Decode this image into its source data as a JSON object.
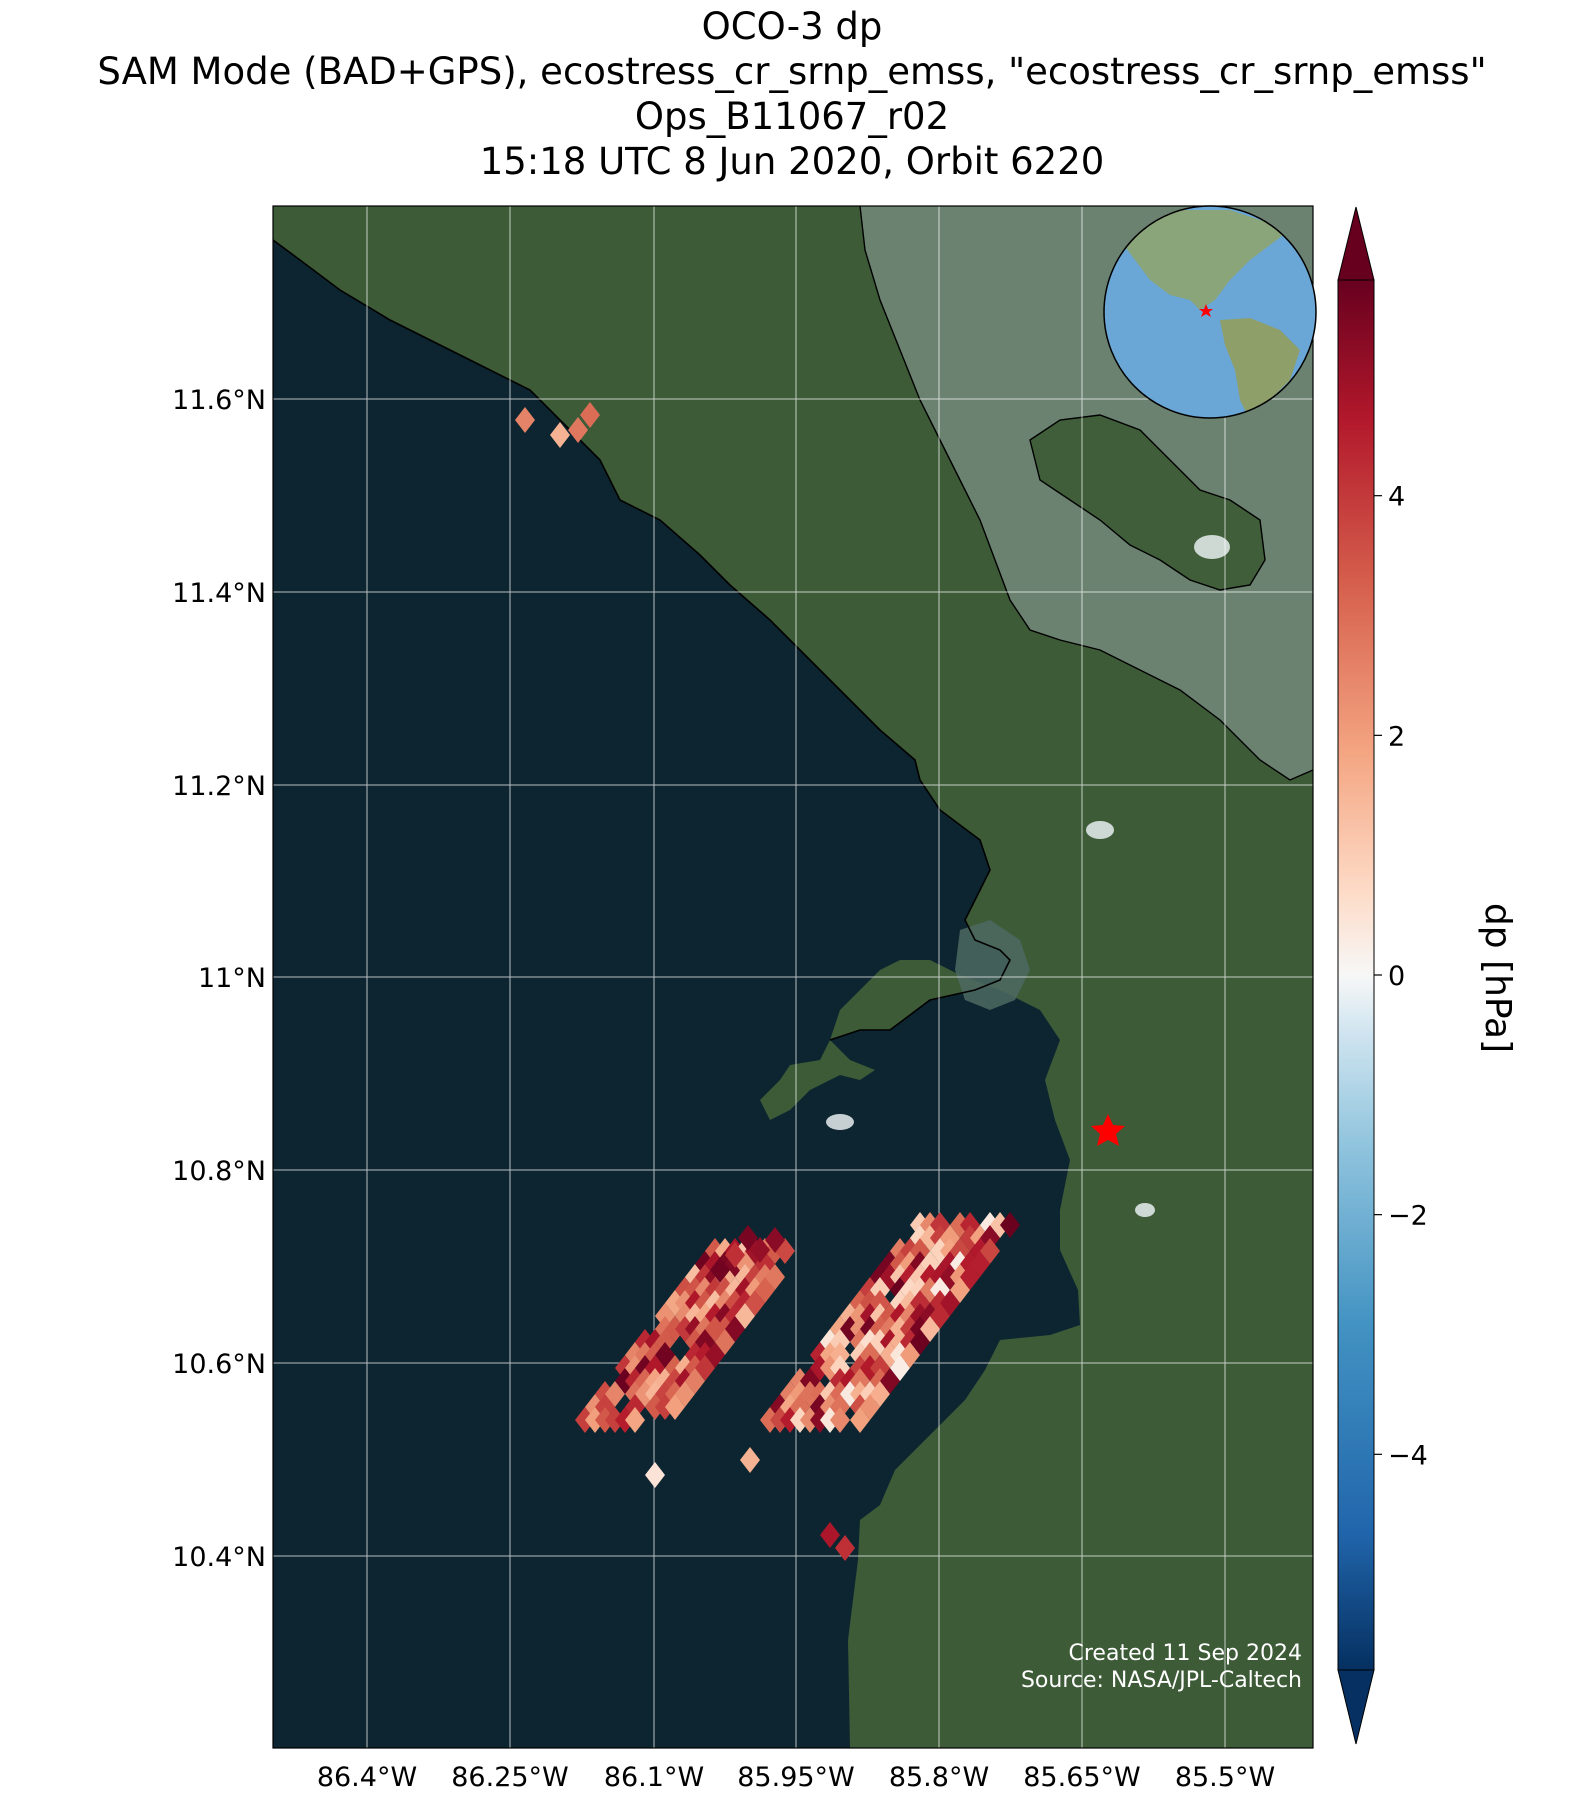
{
  "title": {
    "line1": "OCO-3 dp",
    "line2": "SAM Mode (BAD+GPS), ecostress_cr_srnp_emss, \"ecostress_cr_srnp_emss\"",
    "line3": "Ops_B11067_r02",
    "line4": "15:18 UTC 8 Jun 2020, Orbit 6220"
  },
  "axes": {
    "lon_ticks": [
      "86.4°W",
      "86.25°W",
      "86.1°W",
      "85.95°W",
      "85.8°W",
      "85.65°W",
      "85.5°W"
    ],
    "lat_ticks": [
      "11.6°N",
      "11.4°N",
      "11.2°N",
      "11°N",
      "10.8°N",
      "10.6°N",
      "10.4°N"
    ]
  },
  "colorbar": {
    "label": "dp [hPa]",
    "ticks": [
      "4",
      "2",
      "0",
      "−2",
      "−4"
    ],
    "tick_values": [
      4,
      2,
      0,
      -2,
      -4
    ],
    "range": [
      -5.8,
      5.8
    ],
    "colormap": "RdBu_r"
  },
  "credits": {
    "created": "Created 11 Sep 2024",
    "source": "Source: NASA/JPL-Caltech"
  },
  "colors": {
    "ocean": "#0d2530",
    "land": "#3c5a36",
    "lake": "#6f8676",
    "target_star": "#ff0000"
  },
  "chart_data": {
    "type": "map",
    "extent_lon": [
      -86.5,
      -85.42
    ],
    "extent_lat": [
      10.22,
      11.8
    ],
    "target": {
      "lon": -85.63,
      "lat": 10.845,
      "symbol": "star"
    },
    "soundings_ranges": [
      {
        "region": "north",
        "lon_range": [
          -86.22,
          -86.14
        ],
        "lat_range": [
          11.56,
          11.6
        ],
        "dp_range": [
          2.0,
          3.0
        ]
      },
      {
        "region": "south-west swath",
        "lon_range": [
          -86.17,
          -85.95
        ],
        "lat_range": [
          10.44,
          10.75
        ],
        "dp_range": [
          1.0,
          5.8
        ]
      },
      {
        "region": "south-east swath",
        "lon_range": [
          -86.0,
          -85.77
        ],
        "lat_range": [
          10.42,
          10.73
        ],
        "dp_range": [
          0.0,
          5.8
        ]
      }
    ]
  }
}
